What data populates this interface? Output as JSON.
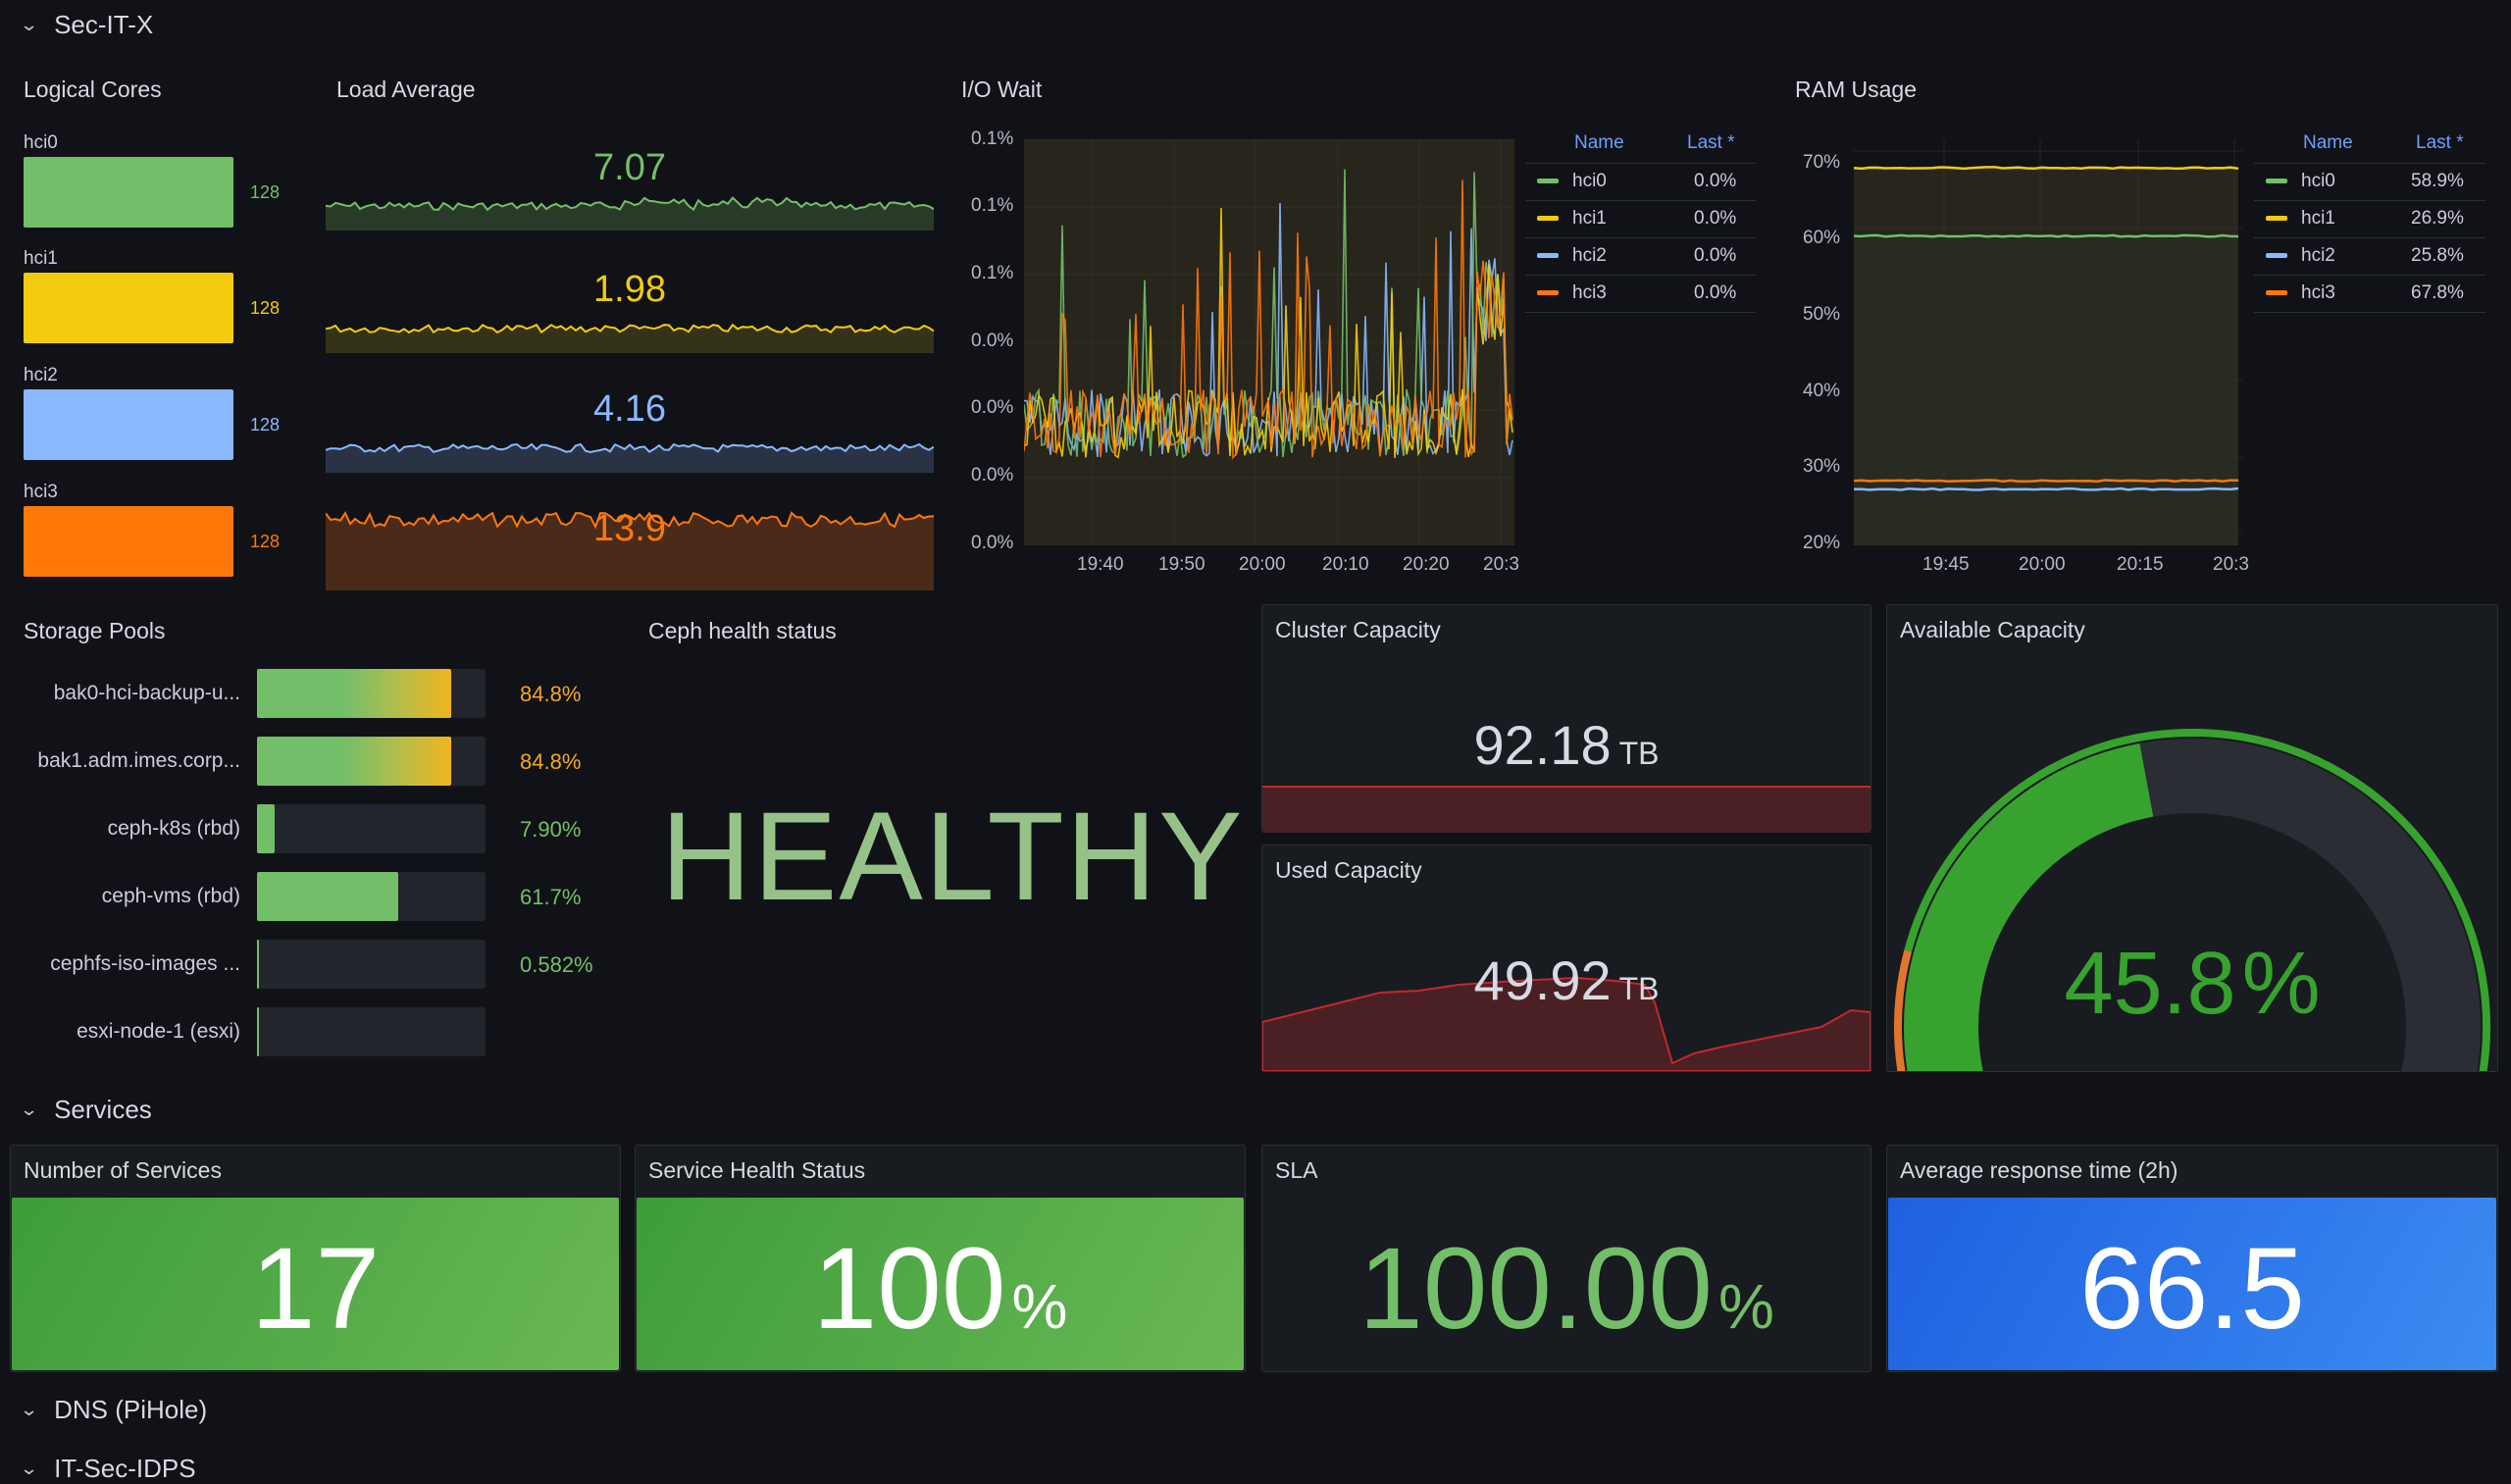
{
  "rows": {
    "row1": "Sec-IT-X",
    "row2": "Services",
    "row3": "DNS (PiHole)",
    "row4": "IT-Sec-IDPS"
  },
  "logical_cores": {
    "title": "Logical Cores",
    "items": [
      {
        "label": "hci0",
        "value": "128",
        "color": "#73bf69"
      },
      {
        "label": "hci1",
        "value": "128",
        "color": "#f2cc0c"
      },
      {
        "label": "hci2",
        "value": "128",
        "color": "#8ab8ff"
      },
      {
        "label": "hci3",
        "value": "128",
        "color": "#ff780a"
      }
    ]
  },
  "load_average": {
    "title": "Load Average",
    "items": [
      {
        "value": "7.07",
        "color": "#73bf69"
      },
      {
        "value": "1.98",
        "color": "#f2cc0c"
      },
      {
        "value": "4.16",
        "color": "#8ab8ff"
      },
      {
        "value": "13.9",
        "color": "#ff780a"
      }
    ]
  },
  "io_wait": {
    "title": "I/O Wait",
    "yticks": [
      "0.1%",
      "0.1%",
      "0.1%",
      "0.0%",
      "0.0%",
      "0.0%",
      "0.0%"
    ],
    "xticks": [
      "19:40",
      "19:50",
      "20:00",
      "20:10",
      "20:20",
      "20:3"
    ],
    "legend_name": "Name",
    "legend_last": "Last *",
    "legend": [
      {
        "name": "hci0",
        "last": "0.0%",
        "color": "#73bf69"
      },
      {
        "name": "hci1",
        "last": "0.0%",
        "color": "#f2cc0c"
      },
      {
        "name": "hci2",
        "last": "0.0%",
        "color": "#8ab8ff"
      },
      {
        "name": "hci3",
        "last": "0.0%",
        "color": "#ff780a"
      }
    ]
  },
  "ram_usage": {
    "title": "RAM Usage",
    "yticks": [
      "70%",
      "60%",
      "50%",
      "40%",
      "30%",
      "20%"
    ],
    "xticks": [
      "19:45",
      "20:00",
      "20:15",
      "20:3"
    ],
    "legend_name": "Name",
    "legend_last": "Last *",
    "legend": [
      {
        "name": "hci0",
        "last": "58.9%",
        "color": "#73bf69"
      },
      {
        "name": "hci1",
        "last": "26.9%",
        "color": "#f2cc0c"
      },
      {
        "name": "hci2",
        "last": "25.8%",
        "color": "#8ab8ff"
      },
      {
        "name": "hci3",
        "last": "67.8%",
        "color": "#ff780a"
      }
    ]
  },
  "storage_pools": {
    "title": "Storage Pools",
    "items": [
      {
        "label": "bak0-hci-backup-u...",
        "value": "84.8%",
        "fraction": 0.848,
        "color": "#f5a623"
      },
      {
        "label": "bak1.adm.imes.corp...",
        "value": "84.8%",
        "fraction": 0.848,
        "color": "#f5a623"
      },
      {
        "label": "ceph-k8s (rbd)",
        "value": "7.90%",
        "fraction": 0.079,
        "color": "#73bf69"
      },
      {
        "label": "ceph-vms (rbd)",
        "value": "61.7%",
        "fraction": 0.617,
        "color": "#73bf69"
      },
      {
        "label": "cephfs-iso-images ...",
        "value": "0.582%",
        "fraction": 0.00582,
        "color": "#73bf69"
      },
      {
        "label": "esxi-node-1 (esxi)",
        "value": "",
        "fraction": 0.002,
        "color": "#73bf69"
      }
    ]
  },
  "ceph_health": {
    "title": "Ceph health status",
    "value": "HEALTHY"
  },
  "cluster_capacity": {
    "title": "Cluster Capacity",
    "value": "92.18",
    "unit": "TB"
  },
  "used_capacity": {
    "title": "Used Capacity",
    "value": "49.92",
    "unit": "TB"
  },
  "available_capacity": {
    "title": "Available Capacity",
    "value": "45.8",
    "unit": "%",
    "fraction": 0.458
  },
  "services": {
    "count": {
      "title": "Number of Services",
      "value": "17"
    },
    "health": {
      "title": "Service Health Status",
      "value": "100",
      "unit": "%"
    },
    "sla": {
      "title": "SLA",
      "value": "100.00",
      "unit": "%"
    },
    "response": {
      "title": "Average response time (2h)",
      "value": "66.5"
    }
  }
}
